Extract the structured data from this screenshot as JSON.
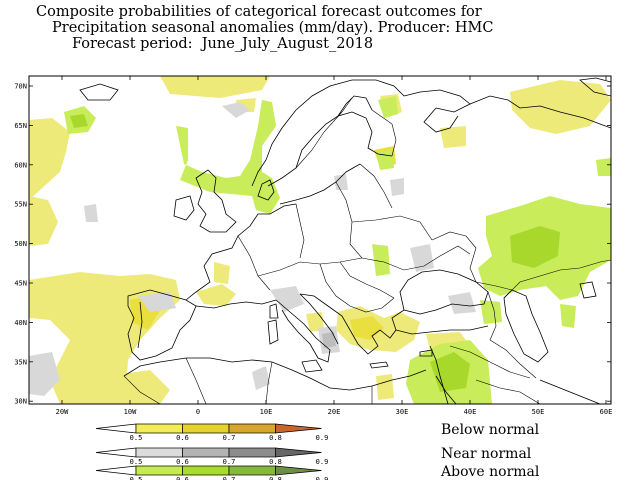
{
  "title": {
    "line1": "Composite probabilities of categorical forecast outcomes for",
    "line2": "Precipitation seasonal anomalies (mm/day). Producer: HMC",
    "line3": "Forecast period:  June_July_August_2018"
  },
  "axes": {
    "lat_labels": [
      "70N",
      "65N",
      "60N",
      "55N",
      "50N",
      "45N",
      "40N",
      "35N",
      "30N"
    ],
    "lon_labels": [
      "20W",
      "10W",
      "0",
      "10E",
      "20E",
      "30E",
      "40E",
      "50E",
      "60E"
    ]
  },
  "legend": {
    "below": {
      "label": "Below normal",
      "ticks": [
        "0.5",
        "0.6",
        "0.7",
        "0.8",
        "0.9"
      ],
      "colors": [
        "#ffffff",
        "#f2ec5a",
        "#e6d22e",
        "#d9a531",
        "#c9662d"
      ]
    },
    "near": {
      "label": "Near normal",
      "ticks": [
        "0.5",
        "0.6",
        "0.7",
        "0.8",
        "0.9"
      ],
      "colors": [
        "#ffffff",
        "#dcdcdc",
        "#b4b4b4",
        "#8c8c8c",
        "#666666"
      ]
    },
    "above": {
      "label": "Above normal",
      "ticks": [
        "0.5",
        "0.6",
        "0.7",
        "0.8",
        "0.9"
      ],
      "colors": [
        "#ffffff",
        "#c6ec4a",
        "#a9dc2a",
        "#86b83a",
        "#6d8e49"
      ]
    }
  },
  "colors": {
    "below_light": "#eeea7a",
    "below_mid": "#e9df3e",
    "near_light": "#d8d8d8",
    "near_mid": "#bdbdbd",
    "above_light": "#c9ec5a",
    "above_mid": "#a9d82c"
  }
}
